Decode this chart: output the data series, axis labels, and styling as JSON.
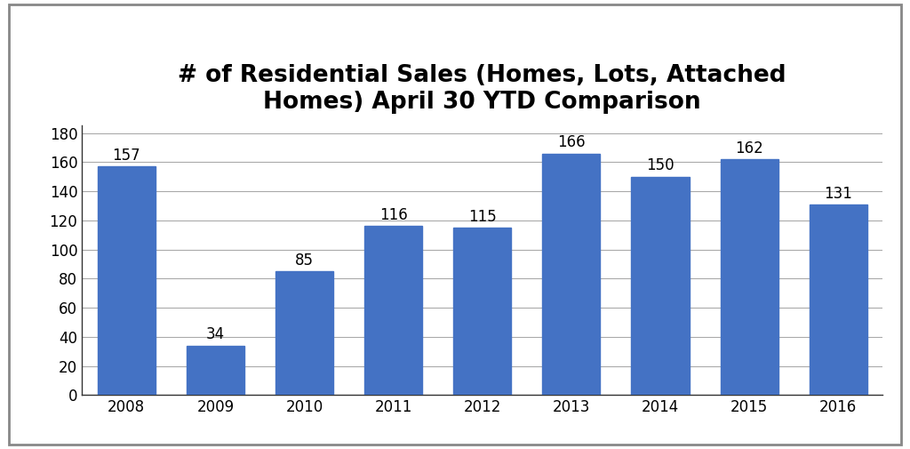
{
  "title": "# of Residential Sales (Homes, Lots, Attached\nHomes) April 30 YTD Comparison",
  "categories": [
    "2008",
    "2009",
    "2010",
    "2011",
    "2012",
    "2013",
    "2014",
    "2015",
    "2016"
  ],
  "values": [
    157,
    34,
    85,
    116,
    115,
    166,
    150,
    162,
    131
  ],
  "bar_color": "#4472C4",
  "ylim": [
    0,
    185
  ],
  "yticks": [
    0,
    20,
    40,
    60,
    80,
    100,
    120,
    140,
    160,
    180
  ],
  "title_fontsize": 19,
  "tick_fontsize": 12,
  "label_fontsize": 12,
  "background_color": "#ffffff",
  "grid_color": "#aaaaaa",
  "bar_width": 0.65,
  "border_color": "#888888"
}
